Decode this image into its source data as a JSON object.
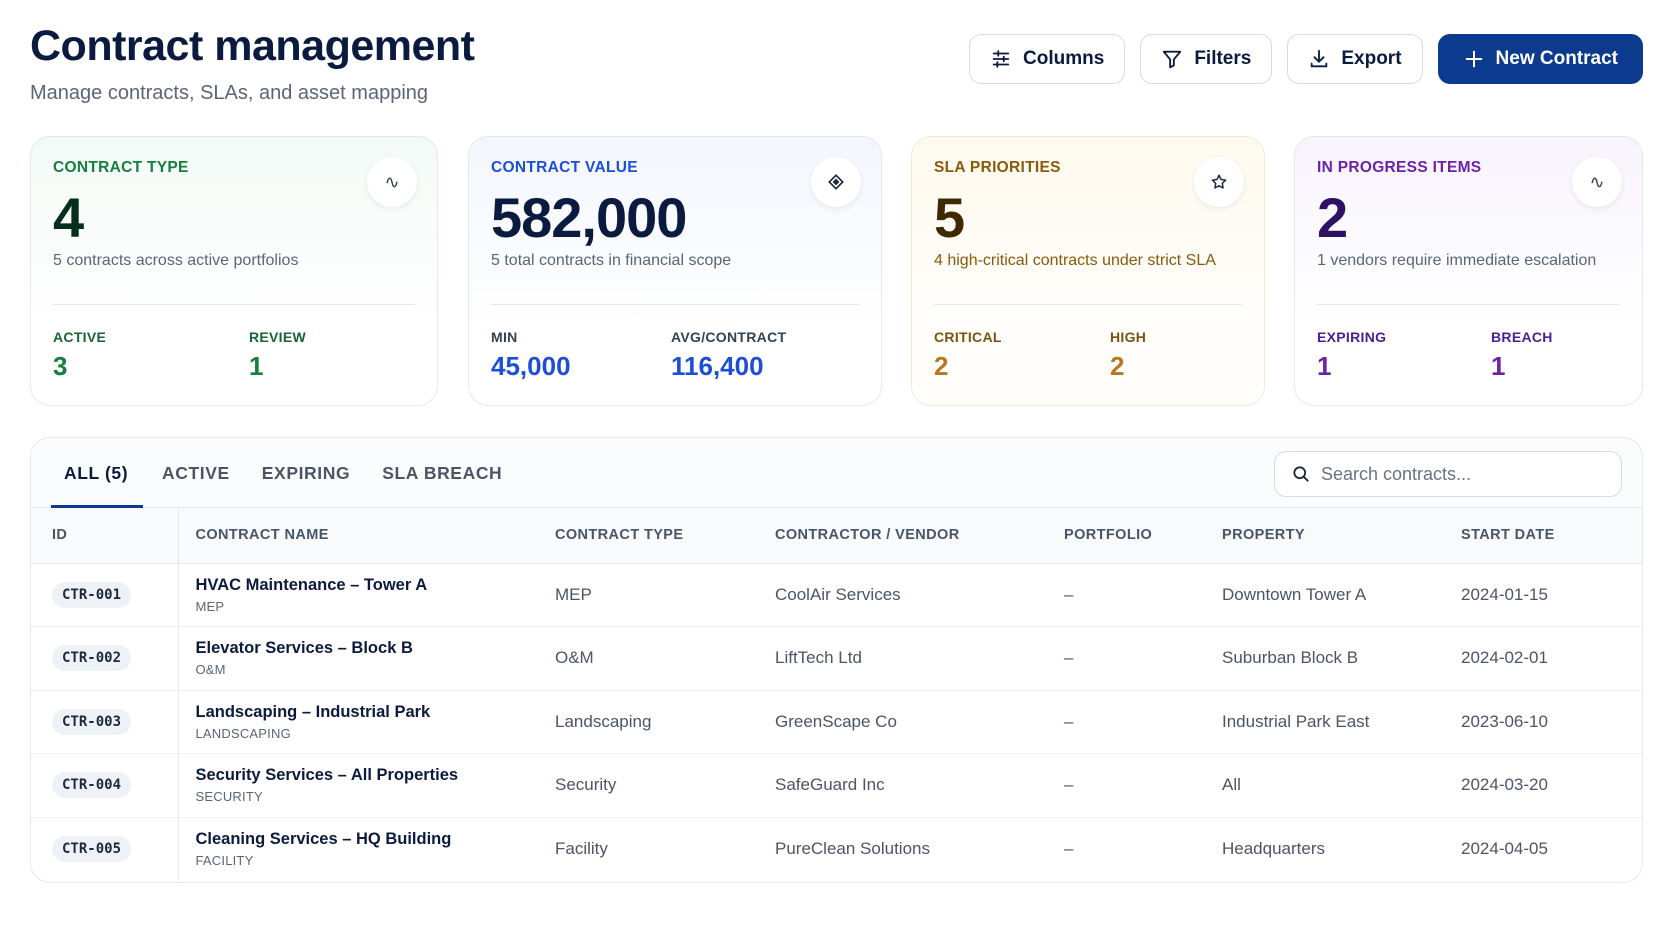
{
  "header": {
    "title": "Contract management",
    "subtitle": "Manage contracts, SLAs, and asset mapping",
    "actions": {
      "columns": "Columns",
      "filters": "Filters",
      "export": "Export",
      "new_contract": "New Contract"
    }
  },
  "cards": [
    {
      "label": "CONTRACT TYPE",
      "icon": "trend-icon",
      "value": "4",
      "desc": "5 contracts across active portfolios",
      "stats": [
        {
          "label": "ACTIVE",
          "value": "3"
        },
        {
          "label": "REVIEW",
          "value": "1"
        }
      ]
    },
    {
      "label": "CONTRACT VALUE",
      "icon": "diamond-icon",
      "value": "582,000",
      "desc": "5 total contracts in financial scope",
      "stats": [
        {
          "label": "MIN",
          "value": "45,000"
        },
        {
          "label": "AVG/CONTRACT",
          "value": "116,400"
        }
      ]
    },
    {
      "label": "SLA PRIORITIES",
      "icon": "star-icon",
      "value": "5",
      "desc": "4 high-critical contracts under strict SLA",
      "stats": [
        {
          "label": "CRITICAL",
          "value": "2"
        },
        {
          "label": "HIGH",
          "value": "2"
        }
      ]
    },
    {
      "label": "IN PROGRESS ITEMS",
      "icon": "trend-icon",
      "value": "2",
      "desc": "1 vendors require immediate escalation",
      "stats": [
        {
          "label": "EXPIRING",
          "value": "1"
        },
        {
          "label": "BREACH",
          "value": "1"
        }
      ]
    }
  ],
  "tabs": [
    {
      "label": "ALL (5)",
      "active": true
    },
    {
      "label": "ACTIVE",
      "active": false
    },
    {
      "label": "EXPIRING",
      "active": false
    },
    {
      "label": "SLA BREACH",
      "active": false
    }
  ],
  "search": {
    "placeholder": "Search contracts...",
    "value": ""
  },
  "table": {
    "columns": [
      "ID",
      "CONTRACT NAME",
      "CONTRACT TYPE",
      "CONTRACTOR / VENDOR",
      "PORTFOLIO",
      "PROPERTY",
      "START DATE"
    ],
    "rows": [
      {
        "id": "CTR-001",
        "name": "HVAC Maintenance – Tower A",
        "category": "MEP",
        "type": "MEP",
        "vendor": "CoolAir Services",
        "portfolio": "–",
        "property": "Downtown Tower A",
        "start": "2024-01-15"
      },
      {
        "id": "CTR-002",
        "name": "Elevator Services – Block B",
        "category": "O&M",
        "type": "O&M",
        "vendor": "LiftTech Ltd",
        "portfolio": "–",
        "property": "Suburban Block B",
        "start": "2024-02-01"
      },
      {
        "id": "CTR-003",
        "name": "Landscaping – Industrial Park",
        "category": "LANDSCAPING",
        "type": "Landscaping",
        "vendor": "GreenScape Co",
        "portfolio": "–",
        "property": "Industrial Park East",
        "start": "2023-06-10"
      },
      {
        "id": "CTR-004",
        "name": "Security Services – All Properties",
        "category": "SECURITY",
        "type": "Security",
        "vendor": "SafeGuard Inc",
        "portfolio": "–",
        "property": "All",
        "start": "2024-03-20"
      },
      {
        "id": "CTR-005",
        "name": "Cleaning Services – HQ Building",
        "category": "FACILITY",
        "type": "Facility",
        "vendor": "PureClean Solutions",
        "portfolio": "–",
        "property": "Headquarters",
        "start": "2024-04-05"
      }
    ]
  },
  "colors": {
    "primary": "#0b3a8f",
    "green": "#15803d",
    "blue": "#1d4ed8",
    "amber": "#b7791f",
    "purple": "#6b21a8"
  }
}
